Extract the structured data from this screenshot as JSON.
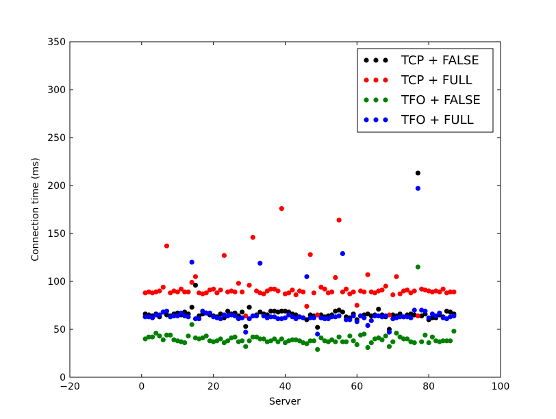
{
  "chart_data": {
    "type": "scatter",
    "title": "",
    "xlabel": "Server",
    "ylabel": "Connection time (ms)",
    "xlim": [
      -20,
      100
    ],
    "ylim": [
      0,
      350
    ],
    "xticks": [
      "−20",
      "0",
      "20",
      "40",
      "60",
      "80",
      "100"
    ],
    "xtick_values": [
      -20,
      0,
      20,
      40,
      60,
      80,
      100
    ],
    "yticks": [
      "0",
      "50",
      "100",
      "150",
      "200",
      "250",
      "300",
      "350"
    ],
    "ytick_values": [
      0,
      50,
      100,
      150,
      200,
      250,
      300,
      350
    ],
    "grid": false,
    "legend_position": "top-right",
    "x": [
      1,
      2,
      3,
      4,
      5,
      6,
      7,
      8,
      9,
      10,
      11,
      12,
      13,
      14,
      15,
      16,
      17,
      18,
      19,
      20,
      21,
      22,
      23,
      24,
      25,
      26,
      27,
      28,
      29,
      30,
      31,
      32,
      33,
      34,
      35,
      36,
      37,
      38,
      39,
      40,
      41,
      42,
      43,
      44,
      45,
      46,
      47,
      48,
      49,
      50,
      51,
      52,
      53,
      54,
      55,
      56,
      57,
      58,
      59,
      60,
      61,
      62,
      63,
      64,
      65,
      66,
      67,
      68,
      69,
      70,
      71,
      72,
      73,
      74,
      75,
      76,
      77,
      78,
      79,
      80,
      81,
      82,
      83,
      84,
      85,
      86,
      87
    ],
    "series": [
      {
        "name": "TCP + FALSE",
        "color": "#000000",
        "values": [
          66,
          65,
          64,
          66,
          63,
          68,
          65,
          64,
          66,
          67,
          65,
          68,
          66,
          73,
          96,
          64,
          66,
          67,
          65,
          64,
          63,
          66,
          62,
          69,
          66,
          67,
          64,
          68,
          53,
          73,
          64,
          65,
          68,
          66,
          65,
          69,
          69,
          68,
          69,
          69,
          68,
          66,
          65,
          63,
          62,
          60,
          65,
          64,
          52,
          65,
          63,
          64,
          65,
          69,
          70,
          68,
          63,
          62,
          66,
          60,
          64,
          65,
          66,
          64,
          65,
          71,
          65,
          63,
          50,
          65,
          64,
          66,
          63,
          65,
          66,
          65,
          213,
          64,
          66,
          60,
          62,
          62,
          65,
          63,
          69,
          68,
          66
        ]
      },
      {
        "name": "TCP + FULL",
        "color": "#ff0000",
        "values": [
          88,
          89,
          88,
          89,
          90,
          94,
          137,
          88,
          90,
          89,
          92,
          89,
          89,
          99,
          105,
          88,
          87,
          88,
          91,
          92,
          88,
          91,
          127,
          89,
          90,
          89,
          98,
          89,
          64,
          96,
          146,
          90,
          88,
          87,
          90,
          92,
          92,
          90,
          176,
          87,
          88,
          91,
          86,
          90,
          89,
          74,
          128,
          88,
          65,
          94,
          92,
          88,
          89,
          104,
          164,
          89,
          92,
          87,
          89,
          75,
          90,
          89,
          107,
          89,
          88,
          90,
          91,
          95,
          65,
          86,
          105,
          87,
          90,
          91,
          88,
          90,
          64,
          92,
          91,
          90,
          89,
          90,
          89,
          92,
          88,
          89,
          89
        ]
      },
      {
        "name": "TFO + FALSE",
        "color": "#008000",
        "values": [
          40,
          42,
          42,
          46,
          43,
          39,
          44,
          44,
          39,
          38,
          37,
          36,
          43,
          55,
          41,
          40,
          41,
          43,
          38,
          37,
          38,
          40,
          36,
          38,
          41,
          42,
          37,
          38,
          32,
          38,
          42,
          42,
          40,
          40,
          37,
          38,
          40,
          37,
          40,
          36,
          38,
          39,
          39,
          38,
          36,
          35,
          38,
          38,
          29,
          41,
          38,
          37,
          39,
          37,
          42,
          37,
          37,
          43,
          38,
          34,
          44,
          45,
          31,
          36,
          40,
          41,
          39,
          43,
          32,
          37,
          46,
          42,
          40,
          40,
          37,
          36,
          115,
          37,
          44,
          36,
          42,
          38,
          37,
          38,
          38,
          38,
          48
        ]
      },
      {
        "name": "TFO + FULL",
        "color": "#0000ff",
        "values": [
          63,
          63,
          62,
          65,
          65,
          68,
          69,
          63,
          64,
          64,
          67,
          64,
          63,
          120,
          61,
          61,
          69,
          67,
          67,
          63,
          62,
          61,
          65,
          64,
          65,
          64,
          61,
          62,
          47,
          61,
          64,
          64,
          119,
          64,
          62,
          63,
          63,
          61,
          61,
          62,
          65,
          63,
          61,
          63,
          62,
          105,
          62,
          62,
          45,
          62,
          61,
          61,
          63,
          63,
          64,
          129,
          60,
          60,
          64,
          58,
          64,
          62,
          54,
          59,
          64,
          64,
          63,
          64,
          47,
          61,
          62,
          63,
          63,
          63,
          62,
          70,
          197,
          70,
          69,
          62,
          66,
          64,
          67,
          62,
          61,
          63,
          64
        ]
      }
    ]
  }
}
